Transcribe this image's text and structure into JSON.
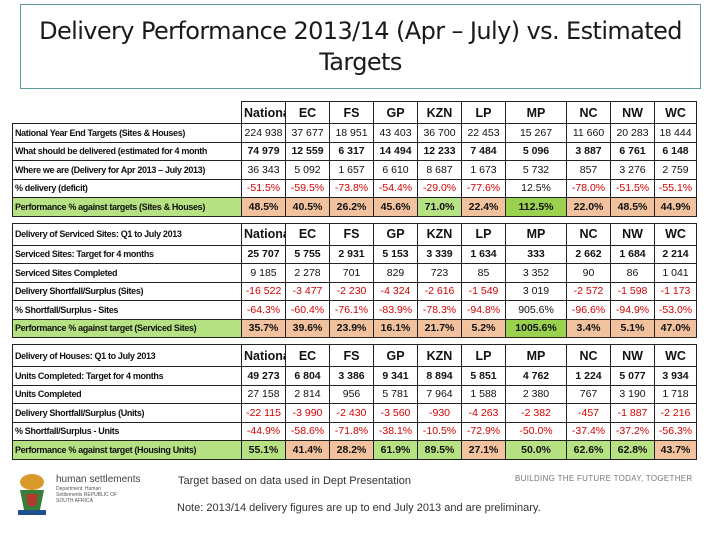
{
  "title": "Delivery Performance 2013/14 (Apr – July) vs. Estimated Targets",
  "columns": [
    "National",
    "EC",
    "FS",
    "GP",
    "KZN",
    "LP",
    "MP",
    "NC",
    "NW",
    "WC"
  ],
  "tables": [
    {
      "header_label": "",
      "rows": [
        {
          "label": "National Year End Targets (Sites & Houses)",
          "values": [
            "224 938",
            "37 677",
            "18 951",
            "43 403",
            "36 700",
            "22 453",
            "15 267",
            "11 660",
            "20 283",
            "18 444"
          ],
          "style": "plain"
        },
        {
          "label": "What should be delivered (estimated for 4 month",
          "values": [
            "74 979",
            "12 559",
            "6 317",
            "14 494",
            "12 233",
            "7 484",
            "5 096",
            "3 887",
            "6 761",
            "6 148"
          ],
          "style": "bold"
        },
        {
          "label": "Where we are (Delivery for Apr 2013 – July 2013)",
          "values": [
            "36 343",
            "5 092",
            "1 657",
            "6 610",
            "8 687",
            "1 673",
            "5 732",
            "857",
            "3 276",
            "2 759"
          ],
          "style": "plain"
        },
        {
          "label": "% delivery (deficit)",
          "values": [
            "-51.5%",
            "-59.5%",
            "-73.8%",
            "-54.4%",
            "-29.0%",
            "-77.6%",
            "12.5%",
            "-78.0%",
            "-51.5%",
            "-55.1%"
          ],
          "style": "neg"
        },
        {
          "label": "Performance % against targets (Sites & Houses)",
          "values": [
            "48.5%",
            "40.5%",
            "26.2%",
            "45.6%",
            "71.0%",
            "22.4%",
            "112.5%",
            "22.0%",
            "48.5%",
            "44.9%"
          ],
          "style": "perf"
        }
      ]
    },
    {
      "header_label": "Delivery of Serviced Sites: Q1 to July 2013",
      "rows": [
        {
          "label": "Serviced Sites: Target for 4 months",
          "values": [
            "25 707",
            "5 755",
            "2 931",
            "5 153",
            "3 339",
            "1 634",
            "333",
            "2 662",
            "1 684",
            "2 214"
          ],
          "style": "bold"
        },
        {
          "label": "Serviced Sites Completed",
          "values": [
            "9 185",
            "2 278",
            "701",
            "829",
            "723",
            "85",
            "3 352",
            "90",
            "86",
            "1 041"
          ],
          "style": "plain"
        },
        {
          "label": "Delivery Shortfall/Surplus (Sites)",
          "values": [
            "-16 522",
            "-3 477",
            "-2 230",
            "-4 324",
            "-2 616",
            "-1 549",
            "3 019",
            "-2 572",
            "-1 598",
            "-1 173"
          ],
          "style": "neg"
        },
        {
          "label": "% Shortfall/Surplus - Sites",
          "values": [
            "-64.3%",
            "-60.4%",
            "-76.1%",
            "-83.9%",
            "-78.3%",
            "-94.8%",
            "905.6%",
            "-96.6%",
            "-94.9%",
            "-53.0%"
          ],
          "style": "neg"
        },
        {
          "label": "Performance % against target (Serviced Sites)",
          "values": [
            "35.7%",
            "39.6%",
            "23.9%",
            "16.1%",
            "21.7%",
            "5.2%",
            "1005.6%",
            "3.4%",
            "5.1%",
            "47.0%"
          ],
          "style": "perf"
        }
      ]
    },
    {
      "header_label": "Delivery of Houses: Q1 to July 2013",
      "rows": [
        {
          "label": "Units Completed: Target for 4 months",
          "values": [
            "49 273",
            "6 804",
            "3 386",
            "9 341",
            "8 894",
            "5 851",
            "4 762",
            "1 224",
            "5 077",
            "3 934"
          ],
          "style": "bold"
        },
        {
          "label": "Units Completed",
          "values": [
            "27 158",
            "2 814",
            "956",
            "5 781",
            "7 964",
            "1 588",
            "2 380",
            "767",
            "3 190",
            "1 718"
          ],
          "style": "plain"
        },
        {
          "label": "Delivery Shortfall/Surplus (Units)",
          "values": [
            "-22 115",
            "-3 990",
            "-2 430",
            "-3 560",
            "-930",
            "-4 263",
            "-2 382",
            "-457",
            "-1 887",
            "-2 216"
          ],
          "style": "neg"
        },
        {
          "label": "% Shortfall/Surplus - Units",
          "values": [
            "-44.9%",
            "-58.6%",
            "-71.8%",
            "-38.1%",
            "-10.5%",
            "-72.9%",
            "-50.0%",
            "-37.4%",
            "-37.2%",
            "-56.3%"
          ],
          "style": "neg"
        },
        {
          "label": "Performance % against target (Housing Units)",
          "values": [
            "55.1%",
            "41.4%",
            "28.2%",
            "61.9%",
            "89.5%",
            "27.1%",
            "50.0%",
            "62.6%",
            "62.8%",
            "43.7%"
          ],
          "style": "perf"
        }
      ]
    }
  ],
  "colors": {
    "perf_green": "#b6e283",
    "perf_red": "#f1c29d",
    "highlight_green": "#9ad14f",
    "negative_text": "#d40000",
    "title_border": "#5b9b97"
  },
  "note_target": "Target based on data used in Dept Presentation",
  "note_prelim": "Note: 2013/14 delivery figures are up to end July 2013 and are preliminary.",
  "logo": {
    "name": "human settlements",
    "sub": "Department: Human Settlements REPUBLIC OF SOUTH AFRICA",
    "icon": "coat-of-arms-icon"
  },
  "slogan": "BUILDING THE FUTURE TODAY, TOGETHER"
}
